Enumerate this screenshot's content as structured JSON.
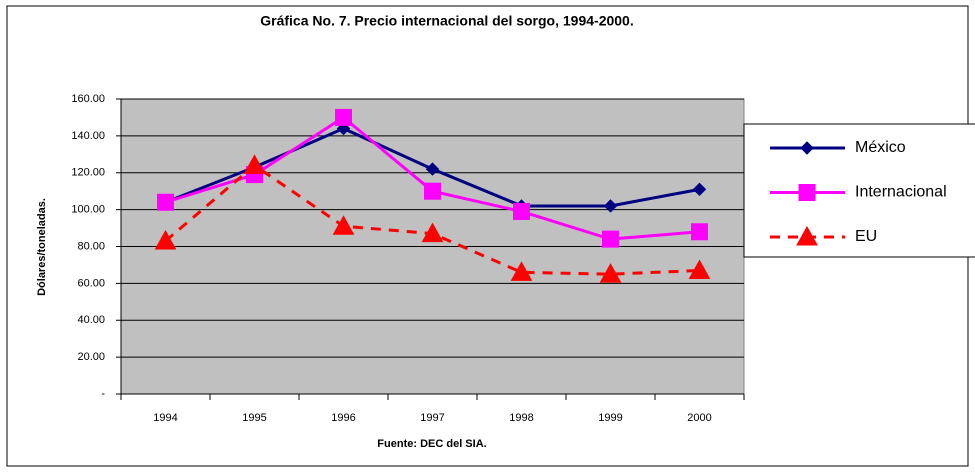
{
  "chart_data": {
    "type": "line",
    "title": "Gráfica No. 7. Precio internacional del sorgo, 1994-2000.",
    "y_label": "Dólares/toneladas.",
    "source": "Fuente: DEC del SIA.",
    "categories": [
      "1994",
      "1995",
      "1996",
      "1997",
      "1998",
      "1999",
      "2000"
    ],
    "series": [
      {
        "name": "México",
        "color": "#000080",
        "marker": "diamond",
        "dashed": false,
        "values": [
          104,
          123,
          144,
          122,
          102,
          102,
          111
        ]
      },
      {
        "name": "Internacional",
        "color": "#ff00ff",
        "marker": "square",
        "dashed": false,
        "values": [
          104,
          119,
          150,
          110,
          99,
          84,
          88
        ]
      },
      {
        "name": "EU",
        "color": "#ff0000",
        "marker": "triangle",
        "dashed": true,
        "values": [
          83,
          124,
          91,
          87,
          66,
          65,
          67
        ]
      }
    ],
    "ylim": [
      0,
      160
    ],
    "yticks": [
      {
        "value": 0,
        "label": "-"
      },
      {
        "value": 20,
        "label": "20.00"
      },
      {
        "value": 40,
        "label": "40.00"
      },
      {
        "value": 60,
        "label": "60.00"
      },
      {
        "value": 80,
        "label": "80.00"
      },
      {
        "value": 100,
        "label": "100.00"
      },
      {
        "value": 120,
        "label": "120.00"
      },
      {
        "value": 140,
        "label": "140.00"
      },
      {
        "value": 160,
        "label": "160.00"
      }
    ],
    "grid": true,
    "plot_background": "#c0c0c0",
    "legend": "right"
  }
}
